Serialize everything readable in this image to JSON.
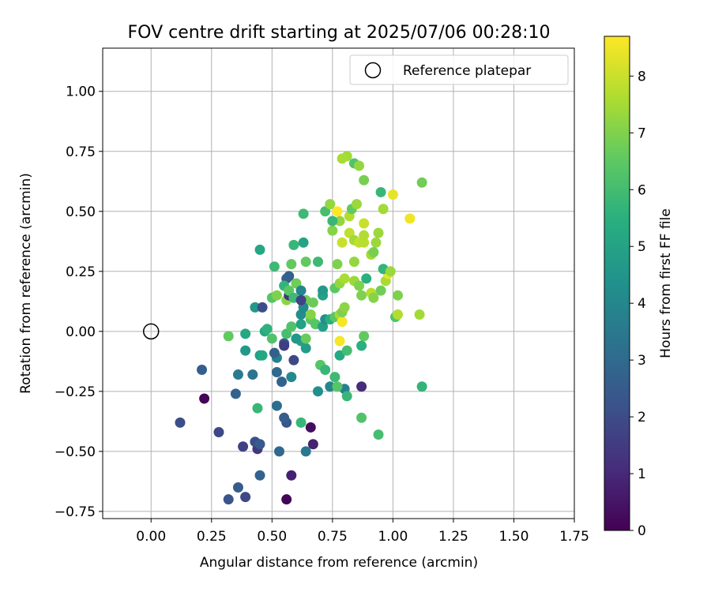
{
  "chart_data": {
    "type": "scatter",
    "title": "FOV centre drift starting at 2025/07/06 00:28:10",
    "xlabel": "Angular distance from reference (arcmin)",
    "ylabel": "Rotation from reference (arcmin)",
    "xlim": [
      -0.2,
      1.75
    ],
    "ylim": [
      -0.78,
      1.18
    ],
    "xticks": [
      0.0,
      0.25,
      0.5,
      0.75,
      1.0,
      1.25,
      1.5,
      1.75
    ],
    "xtick_labels": [
      "0.00",
      "0.25",
      "0.50",
      "0.75",
      "1.00",
      "1.25",
      "1.50",
      "1.75"
    ],
    "yticks": [
      -0.75,
      -0.5,
      -0.25,
      0.0,
      0.25,
      0.5,
      0.75,
      1.0
    ],
    "ytick_labels": [
      "−0.75",
      "−0.50",
      "−0.25",
      "0.00",
      "0.25",
      "0.50",
      "0.75",
      "1.00"
    ],
    "grid": true,
    "legend": {
      "position": "top-right",
      "entries": [
        "Reference platepar"
      ]
    },
    "colormap": "viridis",
    "colorbar": {
      "label": "Hours from first FF file",
      "range": [
        0,
        8.7
      ],
      "ticks": [
        0,
        1,
        2,
        3,
        4,
        5,
        6,
        7,
        8
      ],
      "tick_labels": [
        "0",
        "1",
        "2",
        "3",
        "4",
        "5",
        "6",
        "7",
        "8"
      ]
    },
    "reference_point": {
      "x": 0.0,
      "y": 0.0
    },
    "points": [
      [
        0.56,
        -0.7,
        0.1
      ],
      [
        0.32,
        -0.7,
        2.3
      ],
      [
        0.39,
        -0.69,
        1.9
      ],
      [
        0.36,
        -0.65,
        2.5
      ],
      [
        0.58,
        -0.6,
        0.8
      ],
      [
        0.45,
        -0.6,
        2.8
      ],
      [
        0.53,
        -0.5,
        3.0
      ],
      [
        0.38,
        -0.48,
        1.7
      ],
      [
        0.44,
        -0.49,
        1.4
      ],
      [
        0.43,
        -0.46,
        2.1
      ],
      [
        0.45,
        -0.47,
        2.5
      ],
      [
        0.67,
        -0.47,
        0.8
      ],
      [
        0.28,
        -0.42,
        1.9
      ],
      [
        0.12,
        -0.38,
        2.1
      ],
      [
        0.66,
        -0.4,
        0.3
      ],
      [
        0.64,
        -0.5,
        3.5
      ],
      [
        0.56,
        -0.38,
        2.3
      ],
      [
        0.55,
        -0.36,
        2.6
      ],
      [
        0.62,
        -0.38,
        5.8
      ],
      [
        0.52,
        -0.31,
        3.2
      ],
      [
        0.44,
        -0.32,
        5.8
      ],
      [
        0.22,
        -0.28,
        0.1
      ],
      [
        0.35,
        -0.26,
        2.8
      ],
      [
        0.54,
        -0.21,
        2.8
      ],
      [
        0.52,
        -0.17,
        3.0
      ],
      [
        0.42,
        -0.18,
        3.4
      ],
      [
        0.36,
        -0.18,
        3.6
      ],
      [
        0.21,
        -0.16,
        2.6
      ],
      [
        0.58,
        -0.19,
        4.1
      ],
      [
        0.69,
        -0.25,
        4.3
      ],
      [
        0.74,
        -0.23,
        4.0
      ],
      [
        0.8,
        -0.24,
        3.8
      ],
      [
        0.81,
        -0.27,
        5.8
      ],
      [
        0.87,
        -0.23,
        1.1
      ],
      [
        0.87,
        -0.36,
        6.3
      ],
      [
        0.94,
        -0.43,
        6.1
      ],
      [
        1.12,
        -0.23,
        5.7
      ],
      [
        0.59,
        -0.12,
        1.9
      ],
      [
        0.52,
        -0.11,
        3.8
      ],
      [
        0.51,
        -0.09,
        2.7
      ],
      [
        0.45,
        -0.1,
        4.9
      ],
      [
        0.46,
        -0.1,
        5.2
      ],
      [
        0.39,
        -0.08,
        4.6
      ],
      [
        0.55,
        -0.05,
        2.4
      ],
      [
        0.55,
        -0.06,
        1.6
      ],
      [
        0.62,
        -0.04,
        5.0
      ],
      [
        0.6,
        -0.03,
        4.6
      ],
      [
        0.64,
        -0.07,
        4.8
      ],
      [
        0.7,
        -0.14,
        6.4
      ],
      [
        0.72,
        -0.16,
        5.8
      ],
      [
        0.76,
        -0.19,
        5.9
      ],
      [
        0.77,
        -0.23,
        6.4
      ],
      [
        0.78,
        -0.1,
        5.3
      ],
      [
        0.81,
        -0.08,
        6.1
      ],
      [
        0.87,
        -0.06,
        5.5
      ],
      [
        0.88,
        -0.02,
        6.6
      ],
      [
        0.32,
        -0.02,
        6.6
      ],
      [
        0.39,
        -0.01,
        5.2
      ],
      [
        0.47,
        0.0,
        5.3
      ],
      [
        0.48,
        0.01,
        5.6
      ],
      [
        0.5,
        -0.03,
        6.3
      ],
      [
        0.56,
        -0.01,
        6.1
      ],
      [
        0.58,
        0.02,
        6.3
      ],
      [
        0.62,
        0.03,
        5.0
      ],
      [
        0.62,
        0.07,
        4.2
      ],
      [
        0.64,
        -0.03,
        6.7
      ],
      [
        0.66,
        0.05,
        6.5
      ],
      [
        0.68,
        0.03,
        6.4
      ],
      [
        0.71,
        0.02,
        4.9
      ],
      [
        0.72,
        0.05,
        4.3
      ],
      [
        0.71,
        0.15,
        5.0
      ],
      [
        0.71,
        0.17,
        4.7
      ],
      [
        0.74,
        0.05,
        5.5
      ],
      [
        0.76,
        0.06,
        6.5
      ],
      [
        0.78,
        0.07,
        7.5
      ],
      [
        0.78,
        -0.04,
        8.6
      ],
      [
        0.79,
        0.04,
        8.6
      ],
      [
        0.79,
        0.08,
        7.0
      ],
      [
        0.8,
        0.1,
        7.2
      ],
      [
        0.43,
        0.1,
        4.7
      ],
      [
        0.46,
        0.1,
        2.1
      ],
      [
        0.5,
        0.14,
        6.4
      ],
      [
        0.52,
        0.15,
        7.0
      ],
      [
        0.56,
        0.13,
        7.2
      ],
      [
        0.57,
        0.15,
        1.3
      ],
      [
        0.6,
        0.2,
        6.8
      ],
      [
        0.62,
        0.17,
        4.0
      ],
      [
        0.64,
        0.13,
        6.8
      ],
      [
        0.66,
        0.07,
        7.1
      ],
      [
        0.67,
        0.12,
        6.7
      ],
      [
        0.56,
        0.22,
        2.7
      ],
      [
        0.57,
        0.23,
        2.7
      ],
      [
        0.55,
        0.19,
        5.7
      ],
      [
        0.57,
        0.17,
        6.5
      ],
      [
        0.59,
        0.14,
        5.9
      ],
      [
        0.63,
        0.1,
        4.1
      ],
      [
        0.62,
        0.13,
        1.8
      ],
      [
        0.51,
        0.27,
        5.9
      ],
      [
        0.58,
        0.28,
        6.6
      ],
      [
        0.64,
        0.29,
        6.6
      ],
      [
        0.69,
        0.29,
        5.9
      ],
      [
        0.45,
        0.34,
        5.2
      ],
      [
        0.59,
        0.36,
        5.8
      ],
      [
        0.63,
        0.37,
        5.1
      ],
      [
        0.76,
        0.18,
        6.5
      ],
      [
        0.78,
        0.2,
        7.3
      ],
      [
        0.8,
        0.22,
        7.6
      ],
      [
        0.77,
        0.28,
        7.0
      ],
      [
        0.84,
        0.21,
        7.4
      ],
      [
        0.86,
        0.19,
        7.0
      ],
      [
        0.87,
        0.15,
        7.0
      ],
      [
        0.89,
        0.22,
        5.5
      ],
      [
        0.91,
        0.16,
        7.8
      ],
      [
        0.92,
        0.14,
        7.1
      ],
      [
        0.95,
        0.17,
        6.8
      ],
      [
        0.97,
        0.21,
        7.6
      ],
      [
        0.98,
        0.24,
        8.4
      ],
      [
        0.96,
        0.26,
        5.7
      ],
      [
        0.99,
        0.25,
        7.4
      ],
      [
        1.01,
        0.06,
        6.3
      ],
      [
        1.02,
        0.07,
        7.7
      ],
      [
        1.02,
        0.15,
        7.0
      ],
      [
        1.11,
        0.07,
        7.5
      ],
      [
        0.75,
        0.42,
        7.1
      ],
      [
        0.78,
        0.46,
        7.3
      ],
      [
        0.77,
        0.5,
        8.7
      ],
      [
        0.72,
        0.5,
        6.1
      ],
      [
        0.74,
        0.53,
        7.3
      ],
      [
        0.75,
        0.46,
        5.8
      ],
      [
        0.79,
        0.37,
        8.0
      ],
      [
        0.82,
        0.41,
        7.9
      ],
      [
        0.84,
        0.38,
        7.5
      ],
      [
        0.86,
        0.37,
        7.9
      ],
      [
        0.82,
        0.48,
        7.7
      ],
      [
        0.83,
        0.51,
        6.6
      ],
      [
        0.85,
        0.53,
        7.4
      ],
      [
        0.84,
        0.29,
        7.3
      ],
      [
        0.88,
        0.37,
        7.8
      ],
      [
        0.88,
        0.4,
        7.7
      ],
      [
        0.91,
        0.32,
        7.5
      ],
      [
        0.93,
        0.37,
        7.4
      ],
      [
        0.92,
        0.33,
        6.9
      ],
      [
        0.94,
        0.41,
        7.4
      ],
      [
        0.88,
        0.45,
        8.0
      ],
      [
        0.95,
        0.58,
        5.8
      ],
      [
        0.96,
        0.51,
        7.5
      ],
      [
        1.0,
        0.57,
        8.4
      ],
      [
        1.07,
        0.47,
        8.5
      ],
      [
        1.12,
        0.62,
        6.8
      ],
      [
        0.81,
        0.73,
        7.5
      ],
      [
        0.79,
        0.72,
        7.6
      ],
      [
        0.84,
        0.7,
        6.3
      ],
      [
        0.86,
        0.69,
        7.3
      ],
      [
        0.88,
        0.63,
        6.9
      ],
      [
        0.63,
        0.49,
        5.9
      ]
    ]
  }
}
